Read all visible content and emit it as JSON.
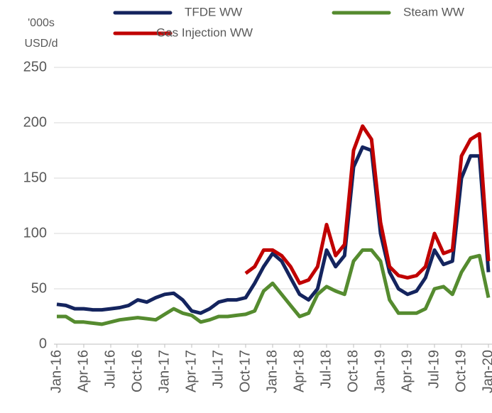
{
  "chart_data": {
    "type": "line",
    "ylabel": [
      "'000s",
      "USD/d"
    ],
    "categories": [
      "Jan-16",
      null,
      null,
      "Apr-16",
      null,
      null,
      "Jul-16",
      null,
      null,
      "Oct-16",
      null,
      null,
      "Jan-17",
      null,
      null,
      "Apr-17",
      null,
      null,
      "Jul-17",
      null,
      null,
      "Oct-17",
      null,
      null,
      "Jan-18",
      null,
      null,
      "Apr-18",
      null,
      null,
      "Jul-18",
      null,
      null,
      "Oct-18",
      null,
      null,
      "Jan-19",
      null,
      null,
      "Apr-19",
      null,
      null,
      "Jul-19",
      null,
      null,
      "Oct-19",
      null,
      null,
      "Jan-20"
    ],
    "series": [
      {
        "name": "TFDE WW",
        "color": "#14245e",
        "values": [
          36,
          35,
          32,
          32,
          31,
          31,
          32,
          33,
          35,
          40,
          38,
          42,
          45,
          46,
          40,
          30,
          28,
          32,
          38,
          40,
          40,
          42,
          55,
          70,
          82,
          75,
          60,
          45,
          40,
          50,
          85,
          70,
          80,
          160,
          178,
          175,
          100,
          65,
          50,
          45,
          48,
          60,
          85,
          72,
          75,
          150,
          170,
          170,
          65
        ]
      },
      {
        "name": "Steam WW",
        "color": "#558b2f",
        "values": [
          25,
          25,
          20,
          20,
          19,
          18,
          20,
          22,
          23,
          24,
          23,
          22,
          27,
          32,
          28,
          26,
          20,
          22,
          25,
          25,
          26,
          27,
          30,
          48,
          55,
          45,
          35,
          25,
          28,
          45,
          52,
          48,
          45,
          75,
          85,
          85,
          75,
          40,
          28,
          28,
          28,
          32,
          50,
          52,
          45,
          65,
          78,
          80,
          42
        ]
      },
      {
        "name": "Gas Injection WW",
        "color": "#c00000",
        "values": [
          null,
          null,
          null,
          null,
          null,
          null,
          null,
          null,
          null,
          null,
          null,
          null,
          null,
          null,
          null,
          null,
          null,
          null,
          null,
          null,
          null,
          64,
          70,
          85,
          85,
          80,
          70,
          55,
          58,
          70,
          108,
          80,
          90,
          175,
          197,
          185,
          110,
          70,
          62,
          60,
          62,
          70,
          100,
          82,
          85,
          170,
          185,
          190,
          75
        ]
      }
    ],
    "ylim": [
      0,
      250
    ],
    "yticks": [
      0,
      50,
      100,
      150,
      200,
      250
    ],
    "grid": true
  }
}
